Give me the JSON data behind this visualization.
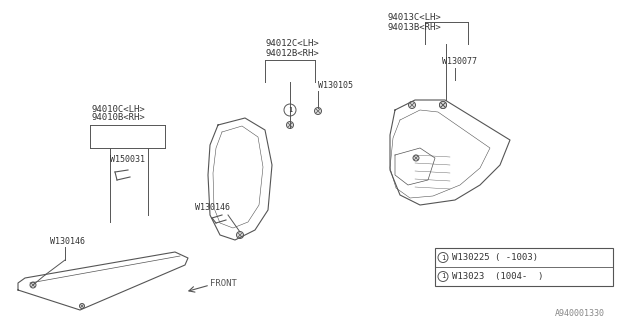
{
  "bg_color": "#ffffff",
  "line_color": "#555555",
  "text_color": "#333333",
  "fig_width": 6.4,
  "fig_height": 3.2,
  "dpi": 100,
  "watermark": "A940001330",
  "labels": {
    "part1_rh": "94010B<RH>",
    "part1_lh": "94010C<LH>",
    "part2_rh": "94012B<RH>",
    "part2_lh": "94012C<LH>",
    "part3_rh": "94013B<RH>",
    "part3_lh": "94013C<LH>",
    "w150031": "W150031",
    "w130146a": "W130146",
    "w130146b": "W130146",
    "w130105": "W130105",
    "w130077": "W130077",
    "front": "FRONT",
    "legend1": "W130225 ( -1003)",
    "legend2": "W13023  (1004-  )"
  }
}
